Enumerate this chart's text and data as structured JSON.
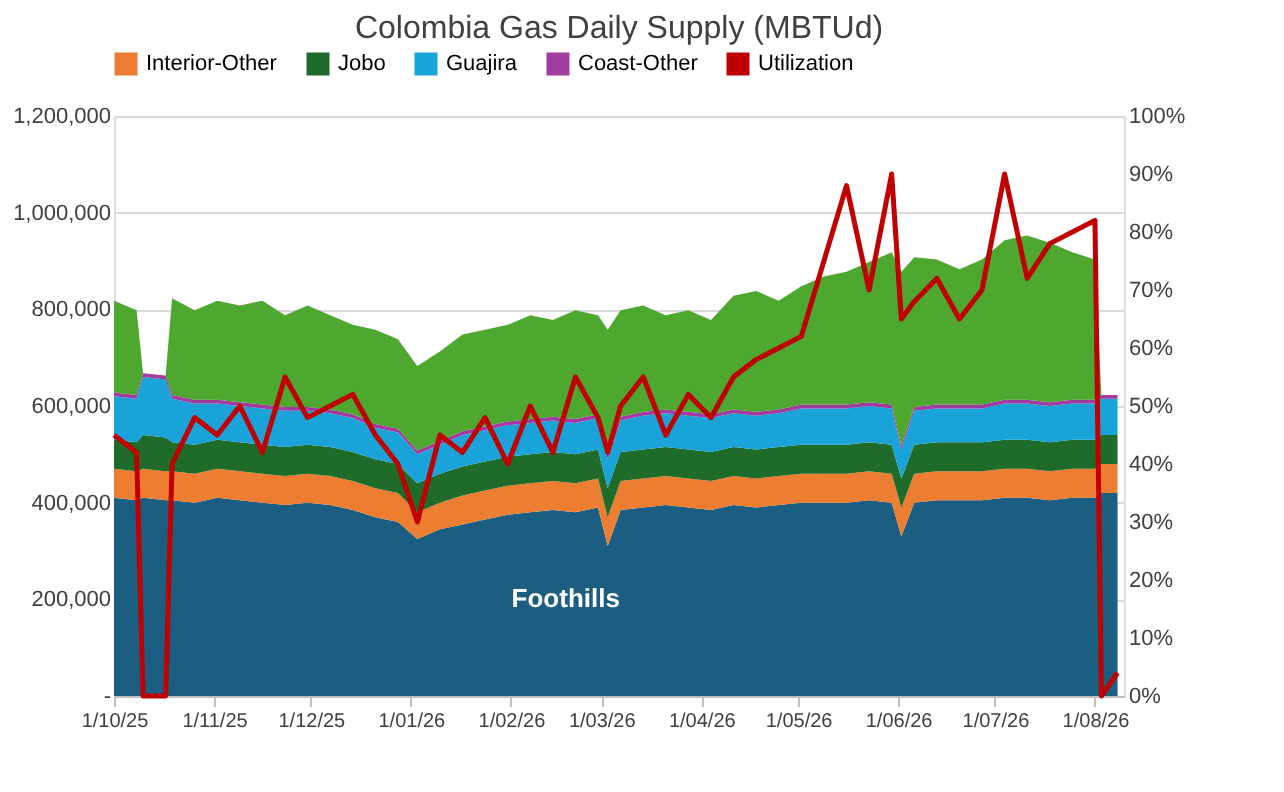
{
  "chart_data": {
    "type": "area",
    "title": "Colombia Gas Daily Supply (MBTUd)",
    "stacked": true,
    "legend": "top",
    "grid": "y",
    "x": [
      "2025-10-01",
      "2025-10-08",
      "2025-10-10",
      "2025-10-17",
      "2025-10-19",
      "2025-10-26",
      "2025-11-02",
      "2025-11-09",
      "2025-11-16",
      "2025-11-23",
      "2025-11-30",
      "2025-12-07",
      "2025-12-14",
      "2025-12-21",
      "2025-12-28",
      "2026-01-03",
      "2026-01-10",
      "2026-01-17",
      "2026-01-24",
      "2026-01-31",
      "2026-02-07",
      "2026-02-14",
      "2026-02-21",
      "2026-02-28",
      "2026-03-03",
      "2026-03-07",
      "2026-03-14",
      "2026-03-21",
      "2026-03-28",
      "2026-04-04",
      "2026-04-11",
      "2026-04-18",
      "2026-04-25",
      "2026-05-02",
      "2026-05-09",
      "2026-05-16",
      "2026-05-23",
      "2026-05-30",
      "2026-06-02",
      "2026-06-06",
      "2026-06-13",
      "2026-06-20",
      "2026-06-27",
      "2026-07-04",
      "2026-07-11",
      "2026-07-18",
      "2026-07-25",
      "2026-08-01",
      "2026-08-03",
      "2026-08-08"
    ],
    "xlim": [
      "2025-10-01",
      "2026-08-10"
    ],
    "xticks": [
      {
        "value": "2025-10-01",
        "label": "1/10/25"
      },
      {
        "value": "2025-11-01",
        "label": "1/11/25"
      },
      {
        "value": "2025-12-01",
        "label": "1/12/25"
      },
      {
        "value": "2026-01-01",
        "label": "1/01/26"
      },
      {
        "value": "2026-02-01",
        "label": "1/02/26"
      },
      {
        "value": "2026-03-01",
        "label": "1/03/26"
      },
      {
        "value": "2026-04-01",
        "label": "1/04/26"
      },
      {
        "value": "2026-05-01",
        "label": "1/05/26"
      },
      {
        "value": "2026-06-01",
        "label": "1/06/26"
      },
      {
        "value": "2026-07-01",
        "label": "1/07/26"
      },
      {
        "value": "2026-08-01",
        "label": "1/08/26"
      }
    ],
    "ylim": [
      0,
      1200000
    ],
    "yticks": [
      {
        "value": 0,
        "label": "-"
      },
      {
        "value": 200000,
        "label": "200,000"
      },
      {
        "value": 400000,
        "label": "400,000"
      },
      {
        "value": 600000,
        "label": "600,000"
      },
      {
        "value": 800000,
        "label": "800,000"
      },
      {
        "value": 1000000,
        "label": "1,000,000"
      },
      {
        "value": 1200000,
        "label": "1,200,000"
      }
    ],
    "y2lim": [
      0,
      100
    ],
    "y2ticks": [
      {
        "value": 0,
        "label": "0%"
      },
      {
        "value": 10,
        "label": "10%"
      },
      {
        "value": 20,
        "label": "20%"
      },
      {
        "value": 30,
        "label": "30%"
      },
      {
        "value": 40,
        "label": "40%"
      },
      {
        "value": 50,
        "label": "50%"
      },
      {
        "value": 60,
        "label": "60%"
      },
      {
        "value": 70,
        "label": "70%"
      },
      {
        "value": 80,
        "label": "80%"
      },
      {
        "value": 90,
        "label": "90%"
      },
      {
        "value": 100,
        "label": "100%"
      }
    ],
    "annotations": [
      "Foothills"
    ],
    "series": [
      {
        "color": "#1b5e82",
        "values": [
          410000,
          405000,
          410000,
          405000,
          405000,
          400000,
          410000,
          405000,
          400000,
          395000,
          400000,
          395000,
          385000,
          370000,
          360000,
          325000,
          345000,
          355000,
          365000,
          375000,
          380000,
          385000,
          380000,
          390000,
          310000,
          385000,
          390000,
          395000,
          390000,
          385000,
          395000,
          390000,
          395000,
          400000,
          400000,
          400000,
          405000,
          400000,
          330000,
          400000,
          405000,
          405000,
          405000,
          410000,
          410000,
          405000,
          410000,
          410000,
          420000,
          420000
        ]
      },
      {
        "name": "Interior-Other",
        "color": "#ed7d31",
        "values": [
          60000,
          60000,
          60000,
          60000,
          60000,
          60000,
          60000,
          60000,
          60000,
          60000,
          60000,
          60000,
          60000,
          60000,
          60000,
          55000,
          55000,
          60000,
          60000,
          60000,
          60000,
          60000,
          60000,
          60000,
          60000,
          60000,
          60000,
          60000,
          60000,
          60000,
          60000,
          60000,
          60000,
          60000,
          60000,
          60000,
          60000,
          60000,
          60000,
          60000,
          60000,
          60000,
          60000,
          60000,
          60000,
          60000,
          60000,
          60000,
          60000,
          60000
        ]
      },
      {
        "name": "Jobo",
        "color": "#1e6b2a",
        "values": [
          60000,
          60000,
          70000,
          70000,
          60000,
          60000,
          60000,
          60000,
          60000,
          60000,
          60000,
          60000,
          60000,
          60000,
          60000,
          60000,
          60000,
          60000,
          60000,
          60000,
          60000,
          60000,
          60000,
          60000,
          60000,
          60000,
          60000,
          60000,
          60000,
          60000,
          60000,
          60000,
          60000,
          60000,
          60000,
          60000,
          60000,
          60000,
          60000,
          60000,
          60000,
          60000,
          60000,
          60000,
          60000,
          60000,
          60000,
          60000,
          60000,
          60000
        ]
      },
      {
        "name": "Guajira",
        "color": "#1aa3d8",
        "values": [
          90000,
          90000,
          120000,
          120000,
          90000,
          85000,
          75000,
          75000,
          75000,
          75000,
          70000,
          70000,
          70000,
          65000,
          65000,
          60000,
          60000,
          65000,
          65000,
          65000,
          65000,
          65000,
          65000,
          65000,
          60000,
          65000,
          70000,
          70000,
          70000,
          70000,
          70000,
          70000,
          70000,
          75000,
          75000,
          75000,
          75000,
          75000,
          60000,
          70000,
          70000,
          70000,
          70000,
          75000,
          75000,
          75000,
          75000,
          75000,
          75000,
          75000
        ]
      },
      {
        "name": "Coast-Other",
        "color": "#a03ca0",
        "values": [
          8000,
          8000,
          8000,
          8000,
          8000,
          8000,
          8000,
          8000,
          8000,
          8000,
          8000,
          8000,
          8000,
          8000,
          8000,
          8000,
          8000,
          8000,
          8000,
          8000,
          8000,
          8000,
          8000,
          8000,
          8000,
          8000,
          8000,
          8000,
          8000,
          8000,
          8000,
          8000,
          8000,
          8000,
          8000,
          8000,
          8000,
          8000,
          8000,
          8000,
          8000,
          8000,
          8000,
          8000,
          8000,
          8000,
          8000,
          8000,
          8000,
          8000
        ]
      },
      {
        "color": "#4ea72e",
        "values": [
          190000,
          175000,
          0,
          0,
          200000,
          185000,
          205000,
          200000,
          215000,
          190000,
          210000,
          195000,
          185000,
          195000,
          185000,
          175000,
          185000,
          200000,
          200000,
          200000,
          215000,
          200000,
          225000,
          205000,
          260000,
          220000,
          220000,
          195000,
          210000,
          195000,
          235000,
          250000,
          225000,
          245000,
          265000,
          275000,
          290000,
          315000,
          360000,
          310000,
          300000,
          280000,
          300000,
          330000,
          340000,
          330000,
          305000,
          290000,
          0,
          0
        ]
      },
      {
        "type": "line",
        "name": "Utilization",
        "axis": "y2",
        "color": "#c00000",
        "line_style": "solid",
        "values": [
          45,
          42,
          0,
          0,
          40,
          48,
          45,
          50,
          42,
          55,
          48,
          50,
          52,
          45,
          40,
          30,
          45,
          42,
          48,
          40,
          50,
          42,
          55,
          48,
          42,
          50,
          55,
          45,
          52,
          48,
          55,
          58,
          60,
          62,
          75,
          88,
          70,
          90,
          65,
          68,
          72,
          65,
          70,
          90,
          72,
          78,
          80,
          82,
          0,
          4
        ]
      }
    ]
  }
}
